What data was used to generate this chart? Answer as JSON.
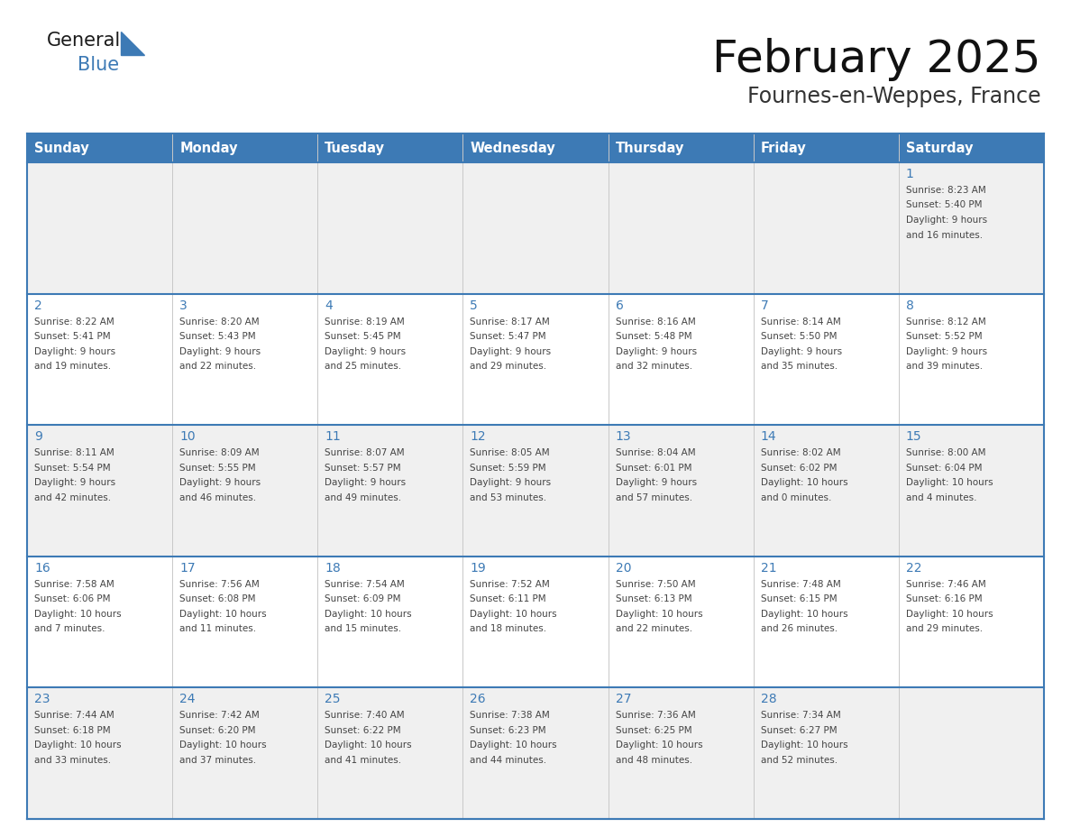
{
  "title": "February 2025",
  "subtitle": "Fournes-en-Weppes, France",
  "header_color": "#3d7ab5",
  "header_text_color": "#ffffff",
  "day_names": [
    "Sunday",
    "Monday",
    "Tuesday",
    "Wednesday",
    "Thursday",
    "Friday",
    "Saturday"
  ],
  "cell_bg_even": "#f0f0f0",
  "cell_bg_odd": "#ffffff",
  "grid_line_color": "#3d7ab5",
  "date_color": "#3d7ab5",
  "text_color": "#444444",
  "logo_general_color": "#1a1a1a",
  "logo_blue_color": "#3d7ab5",
  "title_fontsize": 36,
  "subtitle_fontsize": 17,
  "header_fontsize": 10.5,
  "day_num_fontsize": 10,
  "info_fontsize": 7.5,
  "calendar_data": [
    [
      null,
      null,
      null,
      null,
      null,
      null,
      {
        "day": 1,
        "sunrise": "8:23 AM",
        "sunset": "5:40 PM",
        "daylight": "9 hours and 16 minutes."
      }
    ],
    [
      {
        "day": 2,
        "sunrise": "8:22 AM",
        "sunset": "5:41 PM",
        "daylight": "9 hours and 19 minutes."
      },
      {
        "day": 3,
        "sunrise": "8:20 AM",
        "sunset": "5:43 PM",
        "daylight": "9 hours and 22 minutes."
      },
      {
        "day": 4,
        "sunrise": "8:19 AM",
        "sunset": "5:45 PM",
        "daylight": "9 hours and 25 minutes."
      },
      {
        "day": 5,
        "sunrise": "8:17 AM",
        "sunset": "5:47 PM",
        "daylight": "9 hours and 29 minutes."
      },
      {
        "day": 6,
        "sunrise": "8:16 AM",
        "sunset": "5:48 PM",
        "daylight": "9 hours and 32 minutes."
      },
      {
        "day": 7,
        "sunrise": "8:14 AM",
        "sunset": "5:50 PM",
        "daylight": "9 hours and 35 minutes."
      },
      {
        "day": 8,
        "sunrise": "8:12 AM",
        "sunset": "5:52 PM",
        "daylight": "9 hours and 39 minutes."
      }
    ],
    [
      {
        "day": 9,
        "sunrise": "8:11 AM",
        "sunset": "5:54 PM",
        "daylight": "9 hours and 42 minutes."
      },
      {
        "day": 10,
        "sunrise": "8:09 AM",
        "sunset": "5:55 PM",
        "daylight": "9 hours and 46 minutes."
      },
      {
        "day": 11,
        "sunrise": "8:07 AM",
        "sunset": "5:57 PM",
        "daylight": "9 hours and 49 minutes."
      },
      {
        "day": 12,
        "sunrise": "8:05 AM",
        "sunset": "5:59 PM",
        "daylight": "9 hours and 53 minutes."
      },
      {
        "day": 13,
        "sunrise": "8:04 AM",
        "sunset": "6:01 PM",
        "daylight": "9 hours and 57 minutes."
      },
      {
        "day": 14,
        "sunrise": "8:02 AM",
        "sunset": "6:02 PM",
        "daylight": "10 hours and 0 minutes."
      },
      {
        "day": 15,
        "sunrise": "8:00 AM",
        "sunset": "6:04 PM",
        "daylight": "10 hours and 4 minutes."
      }
    ],
    [
      {
        "day": 16,
        "sunrise": "7:58 AM",
        "sunset": "6:06 PM",
        "daylight": "10 hours and 7 minutes."
      },
      {
        "day": 17,
        "sunrise": "7:56 AM",
        "sunset": "6:08 PM",
        "daylight": "10 hours and 11 minutes."
      },
      {
        "day": 18,
        "sunrise": "7:54 AM",
        "sunset": "6:09 PM",
        "daylight": "10 hours and 15 minutes."
      },
      {
        "day": 19,
        "sunrise": "7:52 AM",
        "sunset": "6:11 PM",
        "daylight": "10 hours and 18 minutes."
      },
      {
        "day": 20,
        "sunrise": "7:50 AM",
        "sunset": "6:13 PM",
        "daylight": "10 hours and 22 minutes."
      },
      {
        "day": 21,
        "sunrise": "7:48 AM",
        "sunset": "6:15 PM",
        "daylight": "10 hours and 26 minutes."
      },
      {
        "day": 22,
        "sunrise": "7:46 AM",
        "sunset": "6:16 PM",
        "daylight": "10 hours and 29 minutes."
      }
    ],
    [
      {
        "day": 23,
        "sunrise": "7:44 AM",
        "sunset": "6:18 PM",
        "daylight": "10 hours and 33 minutes."
      },
      {
        "day": 24,
        "sunrise": "7:42 AM",
        "sunset": "6:20 PM",
        "daylight": "10 hours and 37 minutes."
      },
      {
        "day": 25,
        "sunrise": "7:40 AM",
        "sunset": "6:22 PM",
        "daylight": "10 hours and 41 minutes."
      },
      {
        "day": 26,
        "sunrise": "7:38 AM",
        "sunset": "6:23 PM",
        "daylight": "10 hours and 44 minutes."
      },
      {
        "day": 27,
        "sunrise": "7:36 AM",
        "sunset": "6:25 PM",
        "daylight": "10 hours and 48 minutes."
      },
      {
        "day": 28,
        "sunrise": "7:34 AM",
        "sunset": "6:27 PM",
        "daylight": "10 hours and 52 minutes."
      },
      null
    ]
  ]
}
